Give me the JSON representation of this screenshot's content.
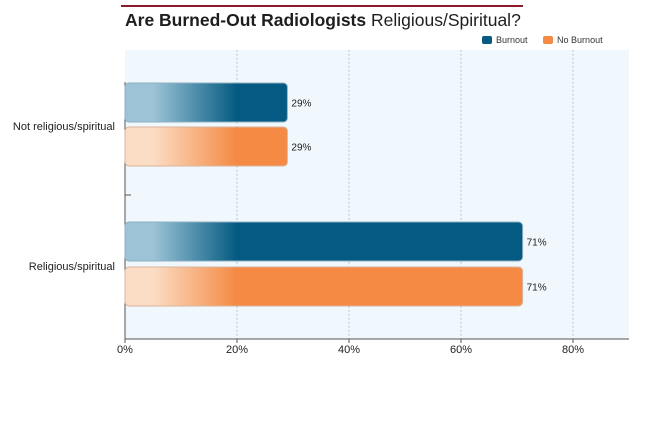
{
  "title_bold": "Are Burned-Out Radiologists",
  "title_rest": "Religious/Spiritual?",
  "colors": {
    "burnout": "#045a82",
    "no_burnout": "#f48a44",
    "plot_bg": "#f0f8fd",
    "title_rule": "#8b1a2b"
  },
  "chart_data": {
    "type": "bar",
    "orientation": "horizontal",
    "title": "Are Burned-Out Radiologists Religious/Spiritual?",
    "categories": [
      "Not religious/spiritual",
      "Religious/spiritual"
    ],
    "series": [
      {
        "name": "Burnout",
        "values": [
          29,
          71
        ],
        "labels": [
          "29%",
          "71%"
        ]
      },
      {
        "name": "No Burnout",
        "values": [
          29,
          71
        ],
        "labels": [
          "29%",
          "71%"
        ]
      }
    ],
    "xlim": [
      0,
      90
    ],
    "xticks": [
      0,
      20,
      40,
      60,
      80
    ],
    "xtick_labels": [
      "0%",
      "20%",
      "40%",
      "60%",
      "80%"
    ],
    "xlabel": "",
    "ylabel": "",
    "grid": "vertical dotted",
    "legend_position": "top-right"
  }
}
